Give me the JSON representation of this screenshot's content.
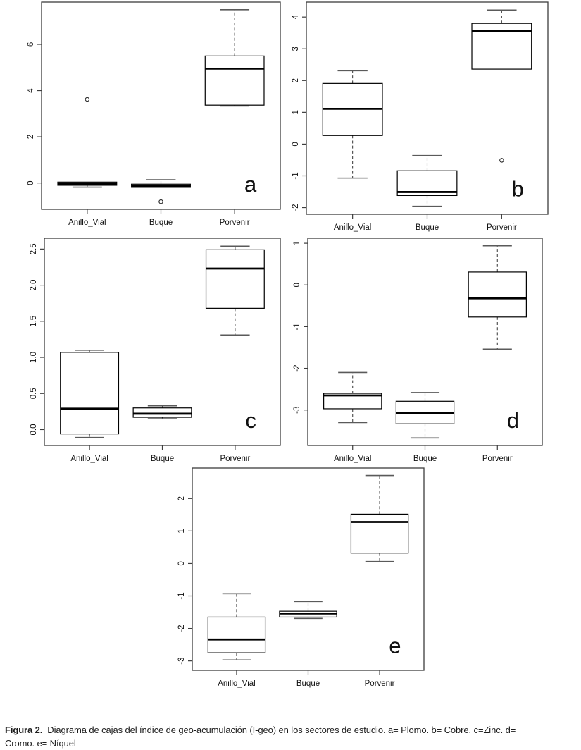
{
  "caption": {
    "label": "Figura 2.",
    "line1": "Diagrama de cajas del índice de geo-acumulación (I-geo) en los sectores de estudio. a= Plomo. b= Cobre. c=Zinc. d=",
    "line2": "Cromo. e= Níquel"
  },
  "colors": {
    "line": "#000000",
    "background": "#ffffff",
    "whisker_cap": "#5a5a5a"
  },
  "chart_data": [
    {
      "type": "boxplot",
      "panel_label": "a",
      "metal": "Plomo",
      "categories": [
        "Anillo_Vial",
        "Buque",
        "Porvenir"
      ],
      "ylim": [
        -1.14,
        7.83
      ],
      "ytick_values": [
        0,
        2,
        4,
        6
      ],
      "ytick_labels": [
        "0",
        "2",
        "4",
        "6"
      ],
      "grid": false,
      "boxes": [
        {
          "category": "Anillo_Vial",
          "whislo": -0.18,
          "q1": -0.1,
          "med": -0.03,
          "q3": 0.04,
          "whishi": 0.04,
          "outliers": [
            3.62
          ]
        },
        {
          "category": "Buque",
          "whislo": -0.19,
          "q1": -0.19,
          "med": -0.12,
          "q3": -0.05,
          "whishi": 0.14,
          "outliers": [
            -0.81
          ]
        },
        {
          "category": "Porvenir",
          "whislo": 3.33,
          "q1": 3.37,
          "med": 4.95,
          "q3": 5.5,
          "whishi": 7.5,
          "outliers": []
        }
      ]
    },
    {
      "type": "boxplot",
      "panel_label": "b",
      "metal": "Cobre",
      "categories": [
        "Anillo_Vial",
        "Buque",
        "Porvenir"
      ],
      "ylim": [
        -2.21,
        4.47
      ],
      "ytick_values": [
        -2,
        -1,
        0,
        1,
        2,
        3,
        4
      ],
      "ytick_labels": [
        "-2",
        "-1",
        "0",
        "1",
        "2",
        "3",
        "4"
      ],
      "grid": false,
      "boxes": [
        {
          "category": "Anillo_Vial",
          "whislo": -1.07,
          "q1": 0.27,
          "med": 1.11,
          "q3": 1.91,
          "whishi": 2.31,
          "outliers": []
        },
        {
          "category": "Buque",
          "whislo": -1.96,
          "q1": -1.62,
          "med": -1.51,
          "q3": -0.84,
          "whishi": -0.36,
          "outliers": []
        },
        {
          "category": "Porvenir",
          "whislo": 2.36,
          "q1": 2.36,
          "med": 3.56,
          "q3": 3.8,
          "whishi": 4.22,
          "outliers": [
            -0.51
          ]
        }
      ]
    },
    {
      "type": "boxplot",
      "panel_label": "c",
      "metal": "Zinc",
      "categories": [
        "Anillo_Vial",
        "Buque",
        "Porvenir"
      ],
      "ylim": [
        -0.22,
        2.65
      ],
      "ytick_values": [
        0,
        0.5,
        1,
        1.5,
        2,
        2.5
      ],
      "ytick_labels": [
        "0.0",
        "0.5",
        "1.0",
        "1.5",
        "2.0",
        "2.5"
      ],
      "grid": false,
      "boxes": [
        {
          "category": "Anillo_Vial",
          "whislo": -0.11,
          "q1": -0.06,
          "med": 0.29,
          "q3": 1.07,
          "whishi": 1.1,
          "outliers": []
        },
        {
          "category": "Buque",
          "whislo": 0.15,
          "q1": 0.17,
          "med": 0.22,
          "q3": 0.3,
          "whishi": 0.33,
          "outliers": []
        },
        {
          "category": "Porvenir",
          "whislo": 1.31,
          "q1": 1.68,
          "med": 2.23,
          "q3": 2.49,
          "whishi": 2.54,
          "outliers": []
        }
      ]
    },
    {
      "type": "boxplot",
      "panel_label": "d",
      "metal": "Cromo",
      "categories": [
        "Anillo_Vial",
        "Buque",
        "Porvenir"
      ],
      "ylim": [
        -3.85,
        1.12
      ],
      "ytick_values": [
        -3,
        -2,
        -1,
        0,
        1
      ],
      "ytick_labels": [
        "-3",
        "-2",
        "-1",
        "0",
        "1"
      ],
      "grid": false,
      "boxes": [
        {
          "category": "Anillo_Vial",
          "whislo": -3.3,
          "q1": -2.97,
          "med": -2.65,
          "q3": -2.6,
          "whishi": -2.1,
          "outliers": []
        },
        {
          "category": "Buque",
          "whislo": -3.67,
          "q1": -3.33,
          "med": -3.08,
          "q3": -2.79,
          "whishi": -2.58,
          "outliers": []
        },
        {
          "category": "Porvenir",
          "whislo": -1.54,
          "q1": -0.77,
          "med": -0.32,
          "q3": 0.31,
          "whishi": 0.94,
          "outliers": []
        }
      ]
    },
    {
      "type": "boxplot",
      "panel_label": "e",
      "metal": "Níquel",
      "categories": [
        "Anillo_Vial",
        "Buque",
        "Porvenir"
      ],
      "ylim": [
        -3.29,
        2.94
      ],
      "ytick_values": [
        -3,
        -2,
        -1,
        0,
        1,
        2
      ],
      "ytick_labels": [
        "-3",
        "-2",
        "-1",
        "0",
        "1",
        "2"
      ],
      "grid": false,
      "boxes": [
        {
          "category": "Anillo_Vial",
          "whislo": -2.97,
          "q1": -2.75,
          "med": -2.34,
          "q3": -1.65,
          "whishi": -0.93,
          "outliers": []
        },
        {
          "category": "Buque",
          "whislo": -1.69,
          "q1": -1.65,
          "med": -1.54,
          "q3": -1.47,
          "whishi": -1.17,
          "outliers": []
        },
        {
          "category": "Porvenir",
          "whislo": 0.06,
          "q1": 0.32,
          "med": 1.28,
          "q3": 1.52,
          "whishi": 2.71,
          "outliers": []
        }
      ]
    }
  ]
}
